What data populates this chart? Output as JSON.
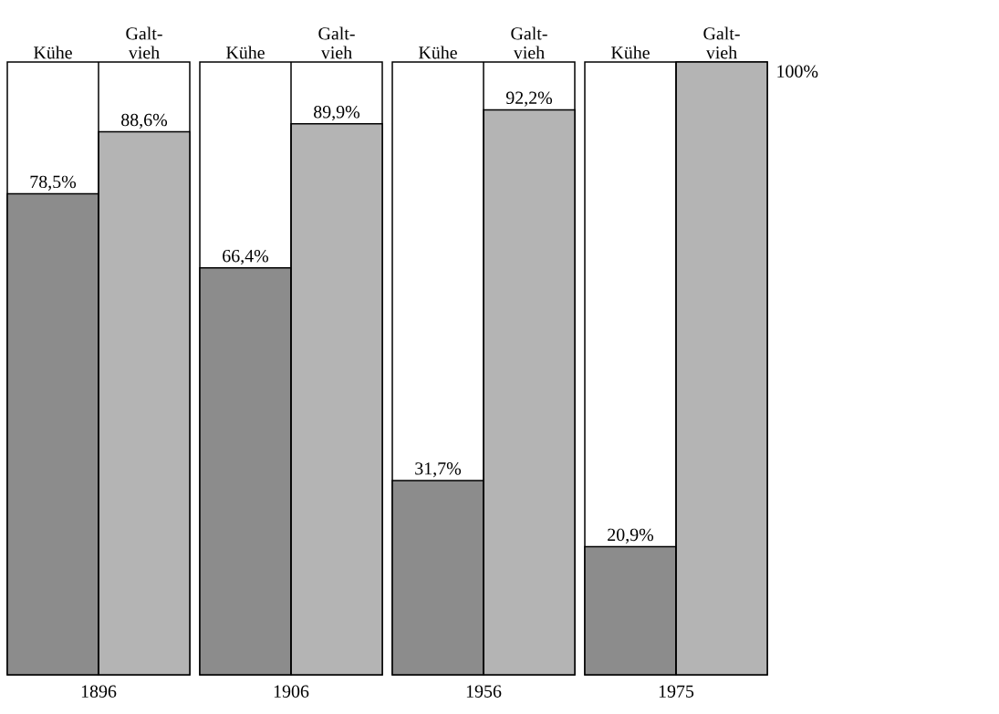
{
  "chart_data": [
    {
      "type": "bar",
      "categories": [
        "Kühe",
        "Galt-vieh"
      ],
      "values": [
        78.5,
        88.6
      ],
      "value_labels": [
        "78,5%",
        "88,6%"
      ],
      "colors": [
        "#8c8c8c",
        "#b4b4b4"
      ],
      "xlabel": "1896",
      "ylim": [
        0,
        100
      ],
      "tick_labels": "x"
    },
    {
      "type": "bar",
      "categories": [
        "Kühe",
        "Galt-vieh"
      ],
      "values": [
        66.4,
        89.9
      ],
      "value_labels": [
        "66,4%",
        "89,9%"
      ],
      "colors": [
        "#8c8c8c",
        "#b4b4b4"
      ],
      "xlabel": "1906",
      "ylim": [
        0,
        100
      ],
      "tick_labels": "x"
    },
    {
      "type": "bar",
      "categories": [
        "Kühe",
        "Galt-vieh"
      ],
      "values": [
        31.7,
        92.2
      ],
      "value_labels": [
        "31,7%",
        "92,2%"
      ],
      "colors": [
        "#8c8c8c",
        "#b4b4b4"
      ],
      "xlabel": "1956",
      "ylim": [
        0,
        100
      ],
      "tick_labels": "x"
    },
    {
      "type": "bar",
      "categories": [
        "Kühe",
        "Galt-vieh"
      ],
      "values": [
        20.9,
        100
      ],
      "value_labels": [
        "20,9%",
        null
      ],
      "colors": [
        "#8c8c8c",
        "#b4b4b4"
      ],
      "xlabel": "1975",
      "ylim": [
        0,
        100
      ],
      "tick_labels": "x",
      "annotations": [
        "100%"
      ]
    }
  ]
}
